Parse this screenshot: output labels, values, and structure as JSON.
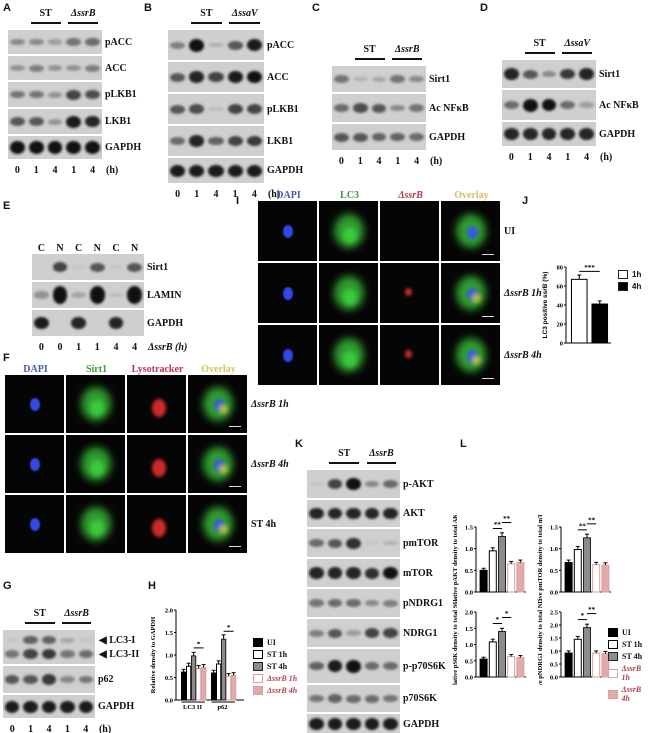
{
  "panels": {
    "A": "A",
    "B": "B",
    "C": "C",
    "D": "D",
    "E": "E",
    "F": "F",
    "G": "G",
    "H": "H",
    "I": "I",
    "J": "J",
    "K": "K",
    "L": "L"
  },
  "colors": {
    "band": "#111111",
    "membrane": "#cfcfcf",
    "dapi": "#3a50ff",
    "green": "#3ecf3e",
    "red": "#e23030",
    "overlay": "#d4c84a",
    "bar_ui": "#000000",
    "bar_st1": "#ffffff",
    "bar_st4": "#8c8c8c",
    "bar_d1_edge": "#d9a0a0",
    "bar_d4": "#e3aaaa"
  },
  "blots": {
    "A": {
      "groups": [
        "ST",
        "ΔssrB"
      ],
      "lanes": [
        "0",
        "1",
        "4",
        "1",
        "4"
      ],
      "unit": "(h)",
      "rows": [
        {
          "label": "pACC",
          "bands": [
            0.35,
            0.35,
            0.25,
            0.45,
            0.5
          ]
        },
        {
          "label": "ACC",
          "bands": [
            0.3,
            0.4,
            0.3,
            0.3,
            0.4
          ]
        },
        {
          "label": "pLKB1",
          "bands": [
            0.45,
            0.45,
            0.3,
            0.7,
            0.65
          ]
        },
        {
          "label": "LKB1",
          "bands": [
            0.6,
            0.6,
            0.3,
            0.9,
            0.85
          ]
        },
        {
          "label": "GAPDH",
          "bands": [
            0.95,
            0.95,
            0.95,
            0.95,
            0.95
          ]
        }
      ]
    },
    "B": {
      "groups": [
        "ST",
        "ΔssaV"
      ],
      "lanes": [
        "0",
        "1",
        "4",
        "1",
        "4"
      ],
      "unit": "(h)",
      "rows": [
        {
          "label": "pACC",
          "bands": [
            0.4,
            1.0,
            0.15,
            0.6,
            0.9
          ]
        },
        {
          "label": "ACC",
          "bands": [
            0.6,
            0.85,
            0.7,
            0.9,
            0.95
          ]
        },
        {
          "label": "pLKB1",
          "bands": [
            0.6,
            0.65,
            0.1,
            0.7,
            0.7
          ]
        },
        {
          "label": "LKB1",
          "bands": [
            0.5,
            0.85,
            0.55,
            0.7,
            0.75
          ]
        },
        {
          "label": "GAPDH",
          "bands": [
            0.9,
            0.9,
            0.9,
            0.9,
            0.9
          ]
        }
      ]
    },
    "C": {
      "groups": [
        "ST",
        "ΔssrB"
      ],
      "lanes": [
        "0",
        "1",
        "4",
        "1",
        "4"
      ],
      "unit": "(h)",
      "rows": [
        {
          "label": "Sirt1",
          "bands": [
            0.45,
            0.15,
            0.2,
            0.45,
            0.35
          ]
        },
        {
          "label": "Ac NFκB",
          "bands": [
            0.5,
            0.65,
            0.6,
            0.35,
            0.45
          ]
        },
        {
          "label": "GAPDH",
          "bands": [
            0.6,
            0.6,
            0.55,
            0.55,
            0.5
          ]
        }
      ]
    },
    "D": {
      "groups": [
        "ST",
        "ΔssaV"
      ],
      "lanes": [
        "0",
        "1",
        "4",
        "1",
        "4"
      ],
      "unit": "(h)",
      "rows": [
        {
          "label": "Sirt1",
          "bands": [
            0.85,
            0.6,
            0.35,
            0.75,
            0.85
          ]
        },
        {
          "label": "Ac NFκB",
          "bands": [
            0.5,
            1.0,
            0.95,
            0.5,
            0.25
          ]
        },
        {
          "label": "GAPDH",
          "bands": [
            0.85,
            0.85,
            0.85,
            0.85,
            0.85
          ]
        }
      ]
    },
    "E": {
      "header": [
        "C",
        "N",
        "C",
        "N",
        "C",
        "N"
      ],
      "lanes": [
        "0",
        "0",
        "1",
        "1",
        "4",
        "4"
      ],
      "unit": "ΔssrB (h)",
      "rows": [
        {
          "label": "Sirt1",
          "bands": [
            0,
            0.7,
            0.05,
            0.6,
            0.05,
            0.6
          ]
        },
        {
          "label": "LAMIN",
          "bands": [
            0.3,
            1.0,
            0.2,
            1.0,
            0.1,
            1.0
          ]
        },
        {
          "label": "GAPDH",
          "bands": [
            0.9,
            0,
            0.85,
            0,
            0.85,
            0
          ]
        }
      ]
    },
    "G": {
      "groups": [
        "ST",
        "ΔssrB"
      ],
      "lanes": [
        "0",
        "1",
        "4",
        "1",
        "4"
      ],
      "unit": "(h)",
      "rows": [
        {
          "label": "",
          "bands": [
            0.05,
            0.55,
            0.55,
            0.2,
            0.05
          ],
          "bands2": [
            0.45,
            0.7,
            0.75,
            0.45,
            0.5
          ],
          "arrows": [
            "LC3-I",
            "LC3-II"
          ]
        },
        {
          "label": "p62",
          "bands": [
            0.6,
            0.6,
            0.75,
            0.35,
            0.45
          ]
        },
        {
          "label": "GAPDH",
          "bands": [
            0.9,
            0.9,
            0.9,
            0.9,
            0.9
          ]
        }
      ]
    },
    "K": {
      "groups": [
        "ST",
        "ΔssrB"
      ],
      "lanes": [
        "0",
        "1",
        "4",
        "1",
        "4"
      ],
      "unit": "(h)",
      "rows": [
        {
          "label": "p-AKT",
          "bands": [
            0.05,
            0.7,
            0.95,
            0.35,
            0.5
          ]
        },
        {
          "label": "AKT",
          "bands": [
            0.85,
            0.85,
            0.85,
            0.85,
            0.85
          ]
        },
        {
          "label": "pmTOR",
          "bands": [
            0.5,
            0.6,
            0.8,
            0.05,
            0.15
          ]
        },
        {
          "label": "mTOR",
          "bands": [
            0.85,
            0.85,
            0.85,
            0.8,
            0.95
          ]
        },
        {
          "label": "pNDRG1",
          "bands": [
            0.45,
            0.5,
            0.5,
            0.35,
            0.4
          ]
        },
        {
          "label": "NDRG1",
          "bands": [
            0.4,
            0.6,
            0.25,
            0.7,
            0.7
          ]
        },
        {
          "label": "p-p70S6K",
          "bands": [
            0.55,
            0.9,
            1.0,
            0.5,
            0.5
          ]
        },
        {
          "label": "p70S6K",
          "bands": [
            0.45,
            0.55,
            0.5,
            0.5,
            0.45
          ]
        },
        {
          "label": "GAPDH",
          "bands": [
            0.9,
            0.9,
            0.9,
            0.9,
            0.9
          ]
        }
      ]
    }
  },
  "micrographs": {
    "I": {
      "columns": [
        "DAPI",
        "LC3",
        "ΔssrB",
        "Overlay"
      ],
      "column_colors": [
        "#4a5ab0",
        "#3a9a3a",
        "#c03050",
        "#d8c060"
      ],
      "rows": [
        "UI",
        "ΔssrB 1h",
        "ΔssrB 4h"
      ],
      "red_present": [
        false,
        true,
        true
      ]
    },
    "F": {
      "columns": [
        "DAPI",
        "Sirt1",
        "Lysotracker",
        "Overlay"
      ],
      "column_colors": [
        "#4a5ab0",
        "#3a9a3a",
        "#c03050",
        "#d8c060"
      ],
      "rows": [
        "ΔssrB 1h",
        "ΔssrB 4h",
        "ST 4h"
      ],
      "red_present": [
        true,
        true,
        true
      ]
    }
  },
  "chart_data": [
    {
      "id": "H",
      "type": "bar",
      "ylabel": "Relative density to GAPDH",
      "ylim": [
        0,
        2.0
      ],
      "yticks": [
        "0.0",
        "0.5",
        "1.0",
        "1.5",
        "2.0"
      ],
      "categories": [
        "LC3 II",
        "p62"
      ],
      "series": [
        {
          "name": "UI",
          "values": [
            0.62,
            0.6
          ]
        },
        {
          "name": "ST 1h",
          "values": [
            0.75,
            0.8
          ]
        },
        {
          "name": "ST 4h",
          "values": [
            0.98,
            1.35
          ]
        },
        {
          "name": "ΔssrB 1h",
          "values": [
            0.7,
            0.53
          ]
        },
        {
          "name": "ΔssrB 4h",
          "values": [
            0.72,
            0.55
          ]
        }
      ],
      "significance": [
        "*",
        "*"
      ]
    },
    {
      "id": "J",
      "type": "bar",
      "ylabel": "LC3 positive ssrB (%)",
      "ylim": [
        0,
        80
      ],
      "yticks": [
        "0",
        "20",
        "40",
        "60",
        "80"
      ],
      "categories": [
        "1h",
        "4h"
      ],
      "values": [
        67,
        41
      ],
      "legend": [
        "1h",
        "4h"
      ],
      "significance": [
        "***"
      ]
    },
    {
      "id": "L1",
      "type": "bar",
      "ylabel": "Relative pAKT density to total AKT",
      "ylim": [
        0,
        1.5
      ],
      "yticks": [
        "0.0",
        "0.5",
        "1.0",
        "1.5"
      ],
      "categories": [
        "UI",
        "ST 1h",
        "ST 4h",
        "ΔssrB 1h",
        "ΔssrB 4h"
      ],
      "values": [
        0.5,
        0.95,
        1.28,
        0.65,
        0.68
      ],
      "significance": [
        "**",
        "**"
      ]
    },
    {
      "id": "L2",
      "type": "bar",
      "ylabel": "Relative pmTOR density to total mTOR",
      "ylim": [
        0,
        1.5
      ],
      "yticks": [
        "0.0",
        "0.5",
        "1.0",
        "1.5"
      ],
      "categories": [
        "UI",
        "ST 1h",
        "ST 4h",
        "ΔssrB 1h",
        "ΔssrB 4h"
      ],
      "values": [
        0.68,
        0.98,
        1.25,
        0.63,
        0.62
      ],
      "significance": [
        "**",
        "**"
      ]
    },
    {
      "id": "L3",
      "type": "bar",
      "ylabel": "Relative pS6K density to total S6K",
      "ylim": [
        0,
        2.0
      ],
      "yticks": [
        "0.0",
        "0.5",
        "1.0",
        "1.5",
        "2.0"
      ],
      "categories": [
        "UI",
        "ST 1h",
        "ST 4h",
        "ΔssrB 1h",
        "ΔssrB 4h"
      ],
      "values": [
        0.55,
        1.08,
        1.4,
        0.63,
        0.6
      ],
      "significance": [
        "*",
        "*"
      ]
    },
    {
      "id": "L4",
      "type": "bar",
      "ylabel": "Relative pNDRG1 density to total NDRG1",
      "ylim": [
        0,
        2.5
      ],
      "yticks": [
        "0.0",
        "0.5",
        "1.0",
        "1.5",
        "2.0",
        "2.5"
      ],
      "categories": [
        "UI",
        "ST 1h",
        "ST 4h",
        "ΔssrB 1h",
        "ΔssrB 4h"
      ],
      "values": [
        0.92,
        1.45,
        1.9,
        0.92,
        0.9
      ],
      "significance": [
        "*",
        "**"
      ]
    }
  ],
  "legends": {
    "H": [
      "UI",
      "ST 1h",
      "ST 4h",
      "ΔssrB 1h",
      "ΔssrB 4h"
    ],
    "L": [
      "UI",
      "ST 1h",
      "ST 4h",
      "ΔssrB 1h",
      "ΔssrB 4h"
    ]
  }
}
